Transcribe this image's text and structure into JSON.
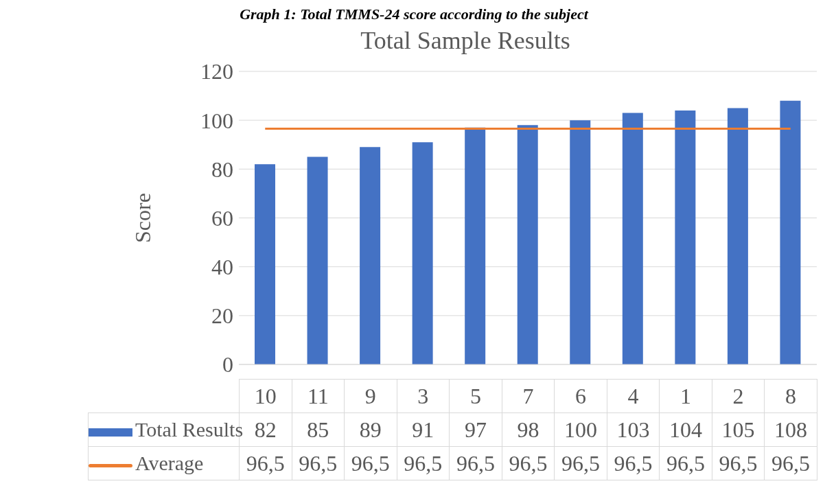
{
  "chart_data": {
    "type": "bar",
    "title": "Total Sample Results",
    "ylabel": "Score",
    "annotations": [
      "Graph 1: Total TMMS-24 score according to the subject"
    ],
    "categories": [
      "10",
      "11",
      "9",
      "3",
      "5",
      "7",
      "6",
      "4",
      "1",
      "2",
      "8"
    ],
    "series": [
      {
        "name": "Total Results",
        "color": "#4472c4",
        "values": [
          82,
          85,
          89,
          91,
          97,
          98,
          100,
          103,
          104,
          105,
          108
        ],
        "value_labels": [
          "82",
          "85",
          "89",
          "91",
          "97",
          "98",
          "100",
          "103",
          "104",
          "105",
          "108"
        ]
      },
      {
        "name": "Average",
        "type": "line",
        "color": "#ed7d31",
        "values": [
          96.5,
          96.5,
          96.5,
          96.5,
          96.5,
          96.5,
          96.5,
          96.5,
          96.5,
          96.5,
          96.5
        ],
        "value_labels": [
          "96,5",
          "96,5",
          "96,5",
          "96,5",
          "96,5",
          "96,5",
          "96,5",
          "96,5",
          "96,5",
          "96,5",
          "96,5"
        ]
      }
    ],
    "ylim": [
      0,
      120
    ],
    "yticks": [
      0,
      20,
      40,
      60,
      80,
      100,
      120
    ],
    "grid": "y",
    "legend": "bottom"
  }
}
